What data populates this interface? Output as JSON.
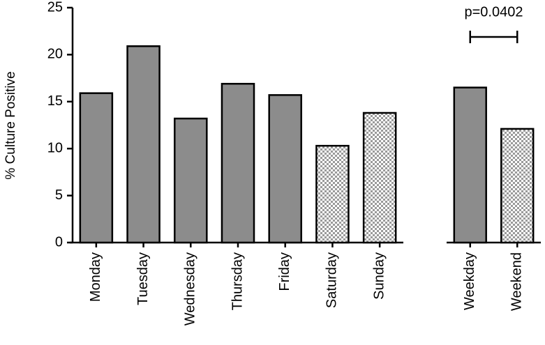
{
  "chart_data": [
    {
      "type": "bar",
      "y_label": "% Culture Positive",
      "categories": [
        "Monday",
        "Tuesday",
        "Wednesday",
        "Thursday",
        "Friday",
        "Saturday",
        "Sunday"
      ],
      "values": [
        15.9,
        20.9,
        13.2,
        16.9,
        15.7,
        10.3,
        13.8
      ],
      "fills": [
        "solid",
        "solid",
        "solid",
        "solid",
        "solid",
        "checkered",
        "checkered"
      ],
      "color": "#8c8c8c",
      "ylim": [
        0,
        25
      ],
      "yticks": [
        0,
        5,
        10,
        15,
        20,
        25
      ]
    },
    {
      "type": "bar",
      "annotation": "p=0.0402",
      "categories": [
        "Weekday",
        "Weekend"
      ],
      "values": [
        16.5,
        12.1
      ],
      "fills": [
        "solid",
        "checkered"
      ],
      "color": "#8c8c8c",
      "ylim": [
        0,
        25
      ]
    }
  ]
}
